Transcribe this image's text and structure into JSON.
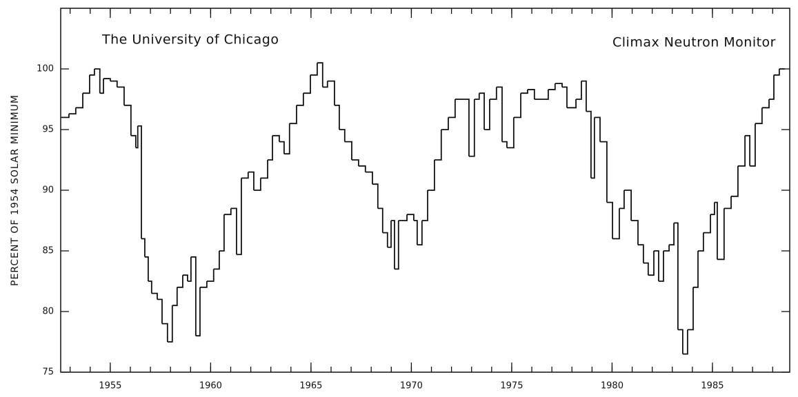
{
  "chart_data": {
    "type": "line",
    "step": "post",
    "annotations": [
      "The University of Chicago",
      "Climax Neutron Monitor"
    ],
    "y_label": "PERCENT OF 1954 SOLAR MINIMUM",
    "color": "#111111",
    "xlim": [
      1952.53,
      1988.85
    ],
    "ylim": [
      75,
      105
    ],
    "xticks": [
      1955,
      1960,
      1965,
      1970,
      1975,
      1980,
      1985
    ],
    "xminorticks": [
      1953,
      1954,
      1955,
      1956,
      1957,
      1958,
      1959,
      1960,
      1961,
      1962,
      1963,
      1964,
      1965,
      1966,
      1967,
      1968,
      1969,
      1970,
      1971,
      1972,
      1973,
      1974,
      1975,
      1976,
      1977,
      1978,
      1979,
      1980,
      1981,
      1982,
      1983,
      1984,
      1985,
      1986,
      1987,
      1988
    ],
    "yticks": [
      75,
      80,
      85,
      90,
      95,
      100
    ],
    "x": [
      1952.53,
      1952.94,
      1953.28,
      1953.63,
      1953.97,
      1954.21,
      1954.48,
      1954.66,
      1955.0,
      1955.34,
      1955.69,
      1956.03,
      1956.27,
      1956.37,
      1956.55,
      1956.72,
      1956.89,
      1957.06,
      1957.34,
      1957.58,
      1957.85,
      1958.09,
      1958.33,
      1958.61,
      1958.85,
      1959.02,
      1959.26,
      1959.47,
      1959.81,
      1960.15,
      1960.43,
      1960.67,
      1961.01,
      1961.29,
      1961.53,
      1961.87,
      1962.15,
      1962.49,
      1962.84,
      1963.08,
      1963.42,
      1963.66,
      1963.93,
      1964.28,
      1964.62,
      1964.97,
      1965.31,
      1965.58,
      1965.82,
      1966.17,
      1966.41,
      1966.68,
      1967.03,
      1967.37,
      1967.71,
      1968.06,
      1968.33,
      1968.57,
      1968.81,
      1968.99,
      1969.16,
      1969.36,
      1969.78,
      1970.12,
      1970.29,
      1970.53,
      1970.81,
      1971.15,
      1971.49,
      1971.84,
      1972.18,
      1972.53,
      1972.87,
      1973.14,
      1973.38,
      1973.63,
      1973.9,
      1974.24,
      1974.52,
      1974.76,
      1975.1,
      1975.45,
      1975.79,
      1976.13,
      1976.48,
      1976.82,
      1977.16,
      1977.51,
      1977.75,
      1978.2,
      1978.47,
      1978.71,
      1978.95,
      1979.12,
      1979.4,
      1979.74,
      1980.02,
      1980.36,
      1980.6,
      1980.95,
      1981.29,
      1981.56,
      1981.8,
      1982.08,
      1982.32,
      1982.56,
      1982.84,
      1983.08,
      1983.28,
      1983.52,
      1983.76,
      1984.04,
      1984.28,
      1984.55,
      1984.9,
      1985.1,
      1985.24,
      1985.58,
      1985.93,
      1986.27,
      1986.62,
      1986.86,
      1987.13,
      1987.47,
      1987.82,
      1988.06,
      1988.33
    ],
    "values": [
      96.0,
      96.3,
      96.8,
      98.0,
      99.5,
      100,
      98.0,
      99.2,
      99.0,
      98.5,
      97.0,
      94.5,
      93.5,
      95.3,
      86,
      84.5,
      82.5,
      81.5,
      81,
      79,
      77.5,
      80.5,
      82,
      83,
      82.5,
      84.5,
      78,
      82,
      82.5,
      83.5,
      85,
      88,
      88.5,
      84.7,
      91,
      91.5,
      90,
      91,
      92.5,
      94.5,
      94,
      93,
      95.5,
      97,
      98,
      99.5,
      100.5,
      98.5,
      99,
      97,
      95,
      94,
      92.5,
      92,
      91.5,
      90.5,
      88.5,
      86.5,
      85.3,
      87.5,
      83.5,
      87.5,
      88,
      87.5,
      85.5,
      87.5,
      90,
      92.5,
      95,
      96,
      97.5,
      97.5,
      92.8,
      97.5,
      98,
      95,
      97.5,
      98.5,
      94,
      93.5,
      96,
      98,
      98.3,
      97.5,
      97.5,
      98.3,
      98.8,
      98.5,
      96.8,
      97.5,
      99,
      96.5,
      91,
      96,
      94,
      89,
      86,
      88.5,
      90,
      87.5,
      85.5,
      84,
      83,
      85,
      82.5,
      85,
      85.5,
      87.3,
      78.5,
      76.5,
      78.5,
      82,
      85,
      86.5,
      88,
      89,
      84.3,
      88.5,
      89.5,
      92,
      94.5,
      92,
      95.5,
      96.8,
      97.5,
      99.5,
      100
    ]
  }
}
